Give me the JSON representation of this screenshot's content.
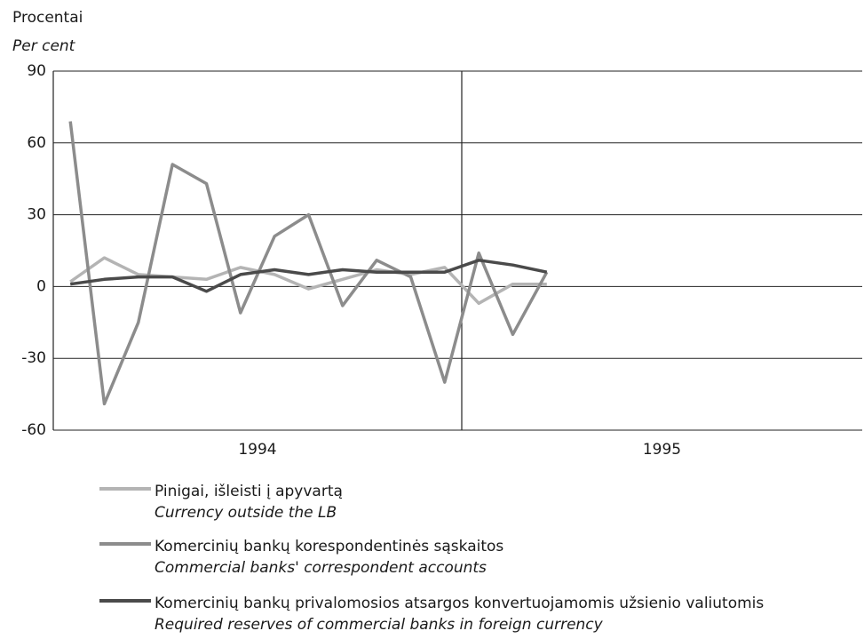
{
  "chart_data": {
    "type": "line",
    "y_label": "Procentai",
    "y_label_en": "Per cent",
    "categories": [
      null,
      null,
      null,
      null,
      null,
      null,
      null,
      null,
      null,
      null,
      null,
      null,
      null,
      null,
      null,
      null,
      null,
      null,
      null,
      null,
      null,
      null,
      null,
      null
    ],
    "x_groups": [
      {
        "label": "1994",
        "count": 12
      },
      {
        "label": "1995",
        "count": 12
      }
    ],
    "ylim": [
      -60,
      90
    ],
    "yticks": [
      90,
      60,
      30,
      0,
      -30,
      -60
    ],
    "grid": true,
    "series": [
      {
        "name": "Pinigai, išleisti į apyvartą",
        "name_en": "Currency outside the LB",
        "color": "#b4b4b4",
        "values": [
          2,
          12,
          5,
          4,
          3,
          8,
          5,
          -1,
          3,
          7,
          5,
          8,
          -7,
          1,
          1,
          null,
          null,
          null,
          null,
          null,
          null,
          null,
          null,
          null
        ]
      },
      {
        "name": "Komercinių bankų korespondentinės sąskaitos",
        "name_en": "Commercial banks' correspondent accounts",
        "color": "#8c8c8c",
        "values": [
          69,
          -49,
          -15,
          51,
          43,
          -11,
          21,
          30,
          -8,
          11,
          4,
          -40,
          14,
          -20,
          6,
          null,
          null,
          null,
          null,
          null,
          null,
          null,
          null,
          null
        ]
      },
      {
        "name": "Komercinių bankų privalomosios atsargos konvertuojamomis užsienio valiutomis",
        "name_en": "Required reserves of commercial banks in foreign currency",
        "color": "#4a4a4a",
        "values": [
          1,
          3,
          4,
          4,
          -2,
          5,
          7,
          5,
          7,
          6,
          6,
          6,
          11,
          9,
          6,
          null,
          null,
          null,
          null,
          null,
          null,
          null,
          null,
          null
        ]
      }
    ]
  }
}
